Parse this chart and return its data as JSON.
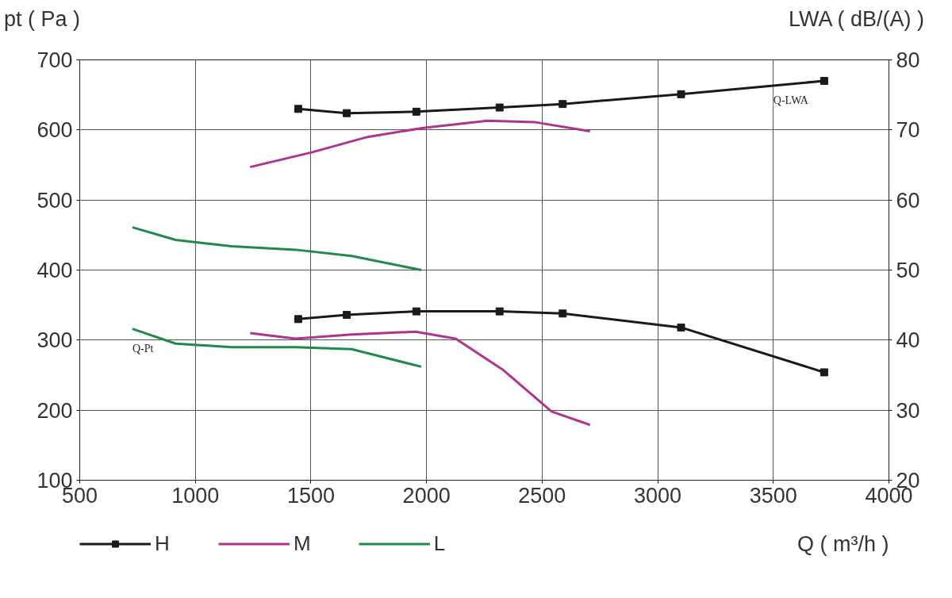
{
  "chart_data": {
    "type": "line",
    "xlabel": "Q ( m³/h )",
    "ylabel": "pt ( Pa )",
    "y2label": "LWA ( dB/(A) )",
    "xlim": [
      500,
      4000
    ],
    "xticks": [
      500,
      1000,
      1500,
      2000,
      2500,
      3000,
      3500,
      4000
    ],
    "ylim": [
      100,
      700
    ],
    "yticks": [
      100,
      200,
      300,
      400,
      500,
      600,
      700
    ],
    "y2lim": [
      20,
      80
    ],
    "y2ticks": [
      20,
      30,
      40,
      50,
      60,
      70,
      80
    ],
    "grid": true,
    "legend": "bottom",
    "line_style": "solid",
    "annotations": [
      {
        "text": "Q-Pt",
        "x": 728,
        "y": 316
      },
      {
        "text": "Q-LWA",
        "x": 3720,
        "y": 670
      }
    ],
    "series": [
      {
        "name": "H",
        "color": "#1a1a1a",
        "marker": "square",
        "x": [
          1445,
          1655,
          1956,
          2316,
          2589,
          3101,
          3720
        ],
        "values": [
          330,
          336,
          341,
          341,
          338,
          318,
          254
        ]
      },
      {
        "name": "M",
        "color": "#b0338f",
        "marker": "none",
        "x": [
          1237,
          1434,
          1676,
          1953,
          2126,
          2333,
          2541,
          2707
        ],
        "values": [
          310,
          302,
          308,
          312,
          302,
          257,
          198,
          179
        ]
      },
      {
        "name": "L",
        "color": "#1f8a4c",
        "marker": "none",
        "x": [
          728,
          915,
          1157,
          1434,
          1676,
          1977
        ],
        "values": [
          316,
          295,
          290,
          290,
          287,
          262
        ]
      },
      {
        "color": "#1a1a1a",
        "marker": "square",
        "axis": "y2",
        "x": [
          1445,
          1655,
          1956,
          2316,
          2589,
          3101,
          3720
        ],
        "values": [
          73.0,
          72.4,
          72.6,
          73.2,
          73.7,
          75.1,
          77.0
        ]
      },
      {
        "color": "#b0338f",
        "marker": "none",
        "axis": "y2",
        "x": [
          1237,
          1503,
          1745,
          1987,
          2264,
          2471,
          2707
        ],
        "values": [
          64.7,
          66.8,
          69.0,
          70.3,
          71.3,
          71.1,
          69.8
        ]
      },
      {
        "color": "#1f8a4c",
        "marker": "none",
        "axis": "y2",
        "x": [
          728,
          915,
          1157,
          1434,
          1676,
          1977
        ],
        "values": [
          56.1,
          54.3,
          53.4,
          52.9,
          52.0,
          50.0
        ]
      }
    ]
  }
}
